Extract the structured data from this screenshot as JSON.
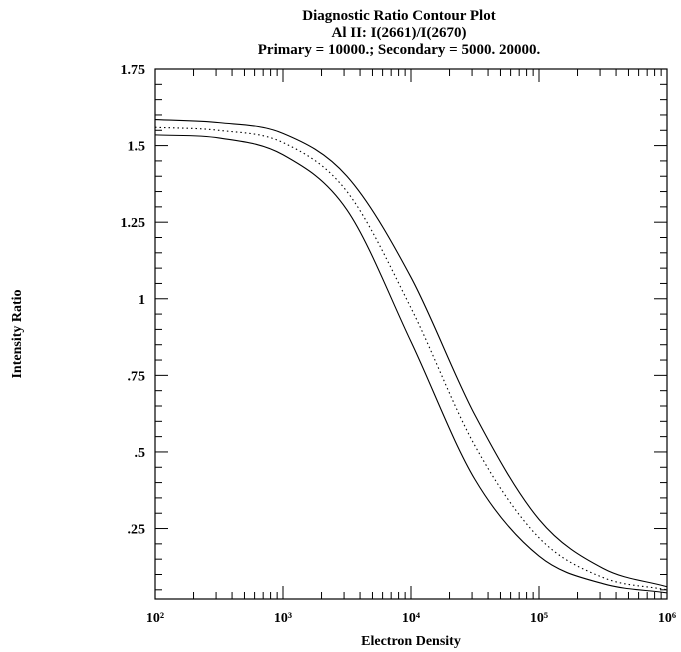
{
  "chart_data": {
    "type": "line",
    "title": "Diagnostic Ratio Contour Plot",
    "subtitle": "Al II: I(2661)/I(2670)",
    "subtitle2": "Primary = 10000.; Secondary = 5000. 20000.",
    "xlabel": "Electron Density",
    "ylabel": "Intensity Ratio",
    "x_scale": "log",
    "xlim": [
      100,
      1000000
    ],
    "ylim": [
      0.02,
      1.75
    ],
    "x_ticks": [
      {
        "value": 100,
        "label": "10²"
      },
      {
        "value": 1000,
        "label": "10³"
      },
      {
        "value": 10000,
        "label": "10⁴"
      },
      {
        "value": 100000,
        "label": "10⁵"
      },
      {
        "value": 1000000,
        "label": "10⁶"
      }
    ],
    "y_ticks": [
      {
        "value": 0.25,
        "label": ".25"
      },
      {
        "value": 0.5,
        "label": ".5"
      },
      {
        "value": 0.75,
        "label": ".75"
      },
      {
        "value": 1,
        "label": "1"
      },
      {
        "value": 1.25,
        "label": "1.25"
      },
      {
        "value": 1.5,
        "label": "1.5"
      },
      {
        "value": 1.75,
        "label": "1.75"
      }
    ],
    "series": [
      {
        "style": "solid",
        "x": [
          100,
          316,
          1000,
          3162,
          10000,
          31623,
          100000,
          316228,
          1000000
        ],
        "y": [
          1.585,
          1.575,
          1.54,
          1.4,
          1.07,
          0.62,
          0.28,
          0.12,
          0.06
        ]
      },
      {
        "style": "dotted",
        "x": [
          100,
          316,
          1000,
          3162,
          10000,
          31623,
          100000,
          316228,
          1000000
        ],
        "y": [
          1.56,
          1.55,
          1.51,
          1.35,
          0.97,
          0.52,
          0.22,
          0.09,
          0.05
        ]
      },
      {
        "style": "solid",
        "x": [
          100,
          316,
          1000,
          3162,
          10000,
          31623,
          100000,
          316228,
          1000000
        ],
        "y": [
          1.535,
          1.525,
          1.47,
          1.29,
          0.86,
          0.41,
          0.16,
          0.07,
          0.04
        ]
      }
    ]
  }
}
